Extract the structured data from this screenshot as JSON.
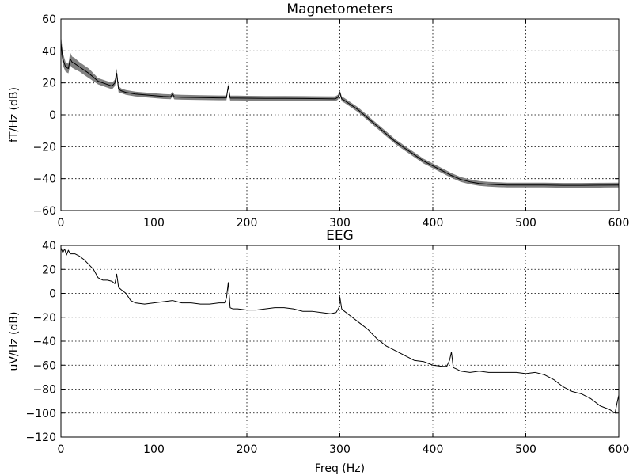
{
  "chart_data": [
    {
      "type": "line",
      "title": "Magnetometers",
      "xlabel": "",
      "ylabel": "fT/Hz (dB)",
      "xlim": [
        0,
        600
      ],
      "ylim": [
        -60,
        60
      ],
      "xticks": [
        0,
        100,
        200,
        300,
        400,
        500,
        600
      ],
      "yticks": [
        60,
        40,
        20,
        0,
        -20,
        -40,
        -60
      ],
      "grid": true,
      "band": true,
      "line_color": "#000000",
      "band_color": "#808080",
      "series": [
        {
          "x": [
            0,
            2,
            5,
            8,
            10,
            12,
            15,
            20,
            25,
            30,
            40,
            50,
            55,
            58,
            60,
            62,
            65,
            70,
            80,
            90,
            100,
            110,
            118,
            120,
            122,
            130,
            150,
            170,
            178,
            180,
            182,
            190,
            200,
            220,
            240,
            260,
            280,
            295,
            298,
            300,
            302,
            305,
            310,
            320,
            330,
            340,
            350,
            360,
            370,
            380,
            390,
            400,
            410,
            420,
            430,
            440,
            450,
            460,
            470,
            480,
            490,
            500,
            520,
            540,
            560,
            580,
            600
          ],
          "y": [
            45,
            35,
            30,
            29,
            35,
            33,
            32,
            30,
            28,
            26,
            21,
            19,
            18,
            20,
            26,
            16,
            15,
            14,
            13,
            12.5,
            12,
            11.5,
            11.3,
            13,
            11.2,
            11,
            10.8,
            10.6,
            10.6,
            18,
            10.5,
            10.5,
            10.4,
            10.3,
            10.3,
            10.2,
            10.1,
            10,
            11,
            14,
            10,
            9,
            7,
            3,
            -2,
            -7,
            -12,
            -17,
            -21,
            -25,
            -29,
            -32,
            -35,
            -38,
            -40.5,
            -42,
            -43,
            -43.5,
            -43.8,
            -44,
            -44,
            -44,
            -44,
            -44.2,
            -44.2,
            -44.1,
            -44
          ]
        }
      ],
      "band_halfwidth": [
        5,
        4,
        3,
        3,
        4,
        3.5,
        3.5,
        3,
        3,
        3,
        2,
        2,
        2,
        2,
        3,
        2,
        1.5,
        1.5,
        1.5,
        1.5,
        1.5,
        1.5,
        1.5,
        1.5,
        1.5,
        1.5,
        1.5,
        1.5,
        1.5,
        1.5,
        1.5,
        1.5,
        1.5,
        1.5,
        1.5,
        1.5,
        1.5,
        1.5,
        1.5,
        1.5,
        1.5,
        1.5,
        1.5,
        1.5,
        1.5,
        1.5,
        1.5,
        1.5,
        1.5,
        1.5,
        1.5,
        1.5,
        1.5,
        1.5,
        1.5,
        1.5,
        1.5,
        1.5,
        1.5,
        1.5,
        1.5,
        1.5,
        1.5,
        1.5,
        1.5,
        1.5,
        1.5
      ]
    },
    {
      "type": "line",
      "title": "EEG",
      "xlabel": "Freq (Hz)",
      "ylabel": "uV/Hz (dB)",
      "xlim": [
        0,
        600
      ],
      "ylim": [
        -120,
        40
      ],
      "xticks": [
        0,
        100,
        200,
        300,
        400,
        500,
        600
      ],
      "yticks": [
        40,
        20,
        0,
        -20,
        -40,
        -60,
        -80,
        -100,
        -120
      ],
      "grid": true,
      "band": false,
      "line_color": "#000000",
      "series": [
        {
          "x": [
            0,
            2,
            4,
            6,
            8,
            10,
            15,
            20,
            25,
            30,
            35,
            40,
            45,
            50,
            55,
            58,
            60,
            62,
            65,
            70,
            75,
            80,
            90,
            100,
            110,
            120,
            130,
            140,
            150,
            160,
            170,
            176,
            178,
            180,
            182,
            185,
            190,
            200,
            210,
            220,
            230,
            240,
            250,
            260,
            270,
            280,
            290,
            296,
            299,
            300,
            302,
            305,
            310,
            320,
            330,
            340,
            350,
            360,
            370,
            380,
            390,
            400,
            410,
            415,
            418,
            420,
            422,
            425,
            430,
            440,
            450,
            460,
            470,
            480,
            490,
            500,
            510,
            520,
            530,
            540,
            550,
            560,
            570,
            580,
            590,
            596,
            598,
            600
          ],
          "y": [
            38,
            34,
            37,
            32,
            36,
            33,
            33,
            31,
            28,
            24,
            20,
            13,
            11,
            11,
            10,
            8,
            16,
            5,
            3,
            0,
            -6,
            -8,
            -9,
            -8,
            -7,
            -6,
            -8,
            -8,
            -9,
            -9,
            -8,
            -8,
            -4,
            9,
            -12,
            -13,
            -13,
            -14,
            -14,
            -13,
            -12,
            -12,
            -13,
            -15,
            -15,
            -16,
            -17,
            -16,
            -12,
            -3,
            -13,
            -15,
            -18,
            -24,
            -30,
            -38,
            -44,
            -48,
            -52,
            -56,
            -57,
            -60,
            -61,
            -61,
            -56,
            -49,
            -62,
            -63,
            -65,
            -66,
            -65,
            -66,
            -66,
            -66,
            -66,
            -67,
            -66,
            -68,
            -72,
            -78,
            -82,
            -84,
            -88,
            -94,
            -97,
            -100,
            -92,
            -85
          ]
        }
      ]
    }
  ]
}
